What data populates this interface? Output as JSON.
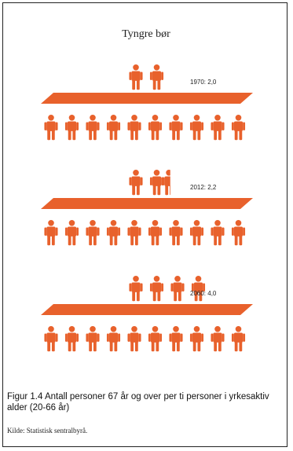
{
  "figure": {
    "title": "Tyngre bør",
    "icon": "person-icon",
    "colors": {
      "accent": "#e8612c",
      "text": "#222222"
    },
    "bottom_row_count": 10,
    "panels": [
      {
        "year": "1970",
        "value": 2.0,
        "label": "1970: 2,0"
      },
      {
        "year": "2012",
        "value": 2.2,
        "label": "2012: 2,2"
      },
      {
        "year": "2060",
        "value": 4.0,
        "label": "2060: 4,0"
      }
    ]
  },
  "caption": "Figur 1.4  Antall personer 67 år og over per ti personer i yrkesaktiv alder (20-66 år)",
  "source": "Kilde: Statistisk sentralbyrå."
}
